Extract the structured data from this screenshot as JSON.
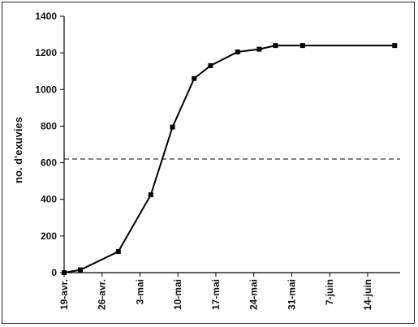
{
  "chart_data": {
    "type": "line",
    "title": "",
    "xlabel": "",
    "ylabel": "no. d'exuvies",
    "ylim": [
      0,
      1400
    ],
    "yticks": [
      0,
      200,
      400,
      600,
      800,
      1000,
      1200,
      1400
    ],
    "x_tick_labels": [
      "19-avr.",
      "26-avr.",
      "3-mai",
      "10-mai",
      "17-mai",
      "24-mai",
      "31-mai",
      "7-juin",
      "14-juin"
    ],
    "x_tick_days": [
      0,
      7,
      14,
      21,
      28,
      35,
      42,
      49,
      56
    ],
    "xlim_days": [
      0,
      62
    ],
    "series": [
      {
        "x_dates": [
          "19-avr.",
          "22-avr.",
          "29-avr.",
          "5-mai",
          "9-mai",
          "13-mai",
          "16-mai",
          "21-mai",
          "25-mai",
          "28-mai",
          "2-juin",
          "19-juin"
        ],
        "x_days": [
          0,
          3,
          10,
          16,
          20,
          24,
          27,
          32,
          36,
          39,
          44,
          61
        ],
        "values": [
          0,
          15,
          115,
          425,
          795,
          1060,
          1130,
          1205,
          1220,
          1240,
          1240,
          1240
        ]
      }
    ],
    "reference_line": {
      "y": 620,
      "style": "dashed"
    },
    "grid": false,
    "legend": "none"
  }
}
